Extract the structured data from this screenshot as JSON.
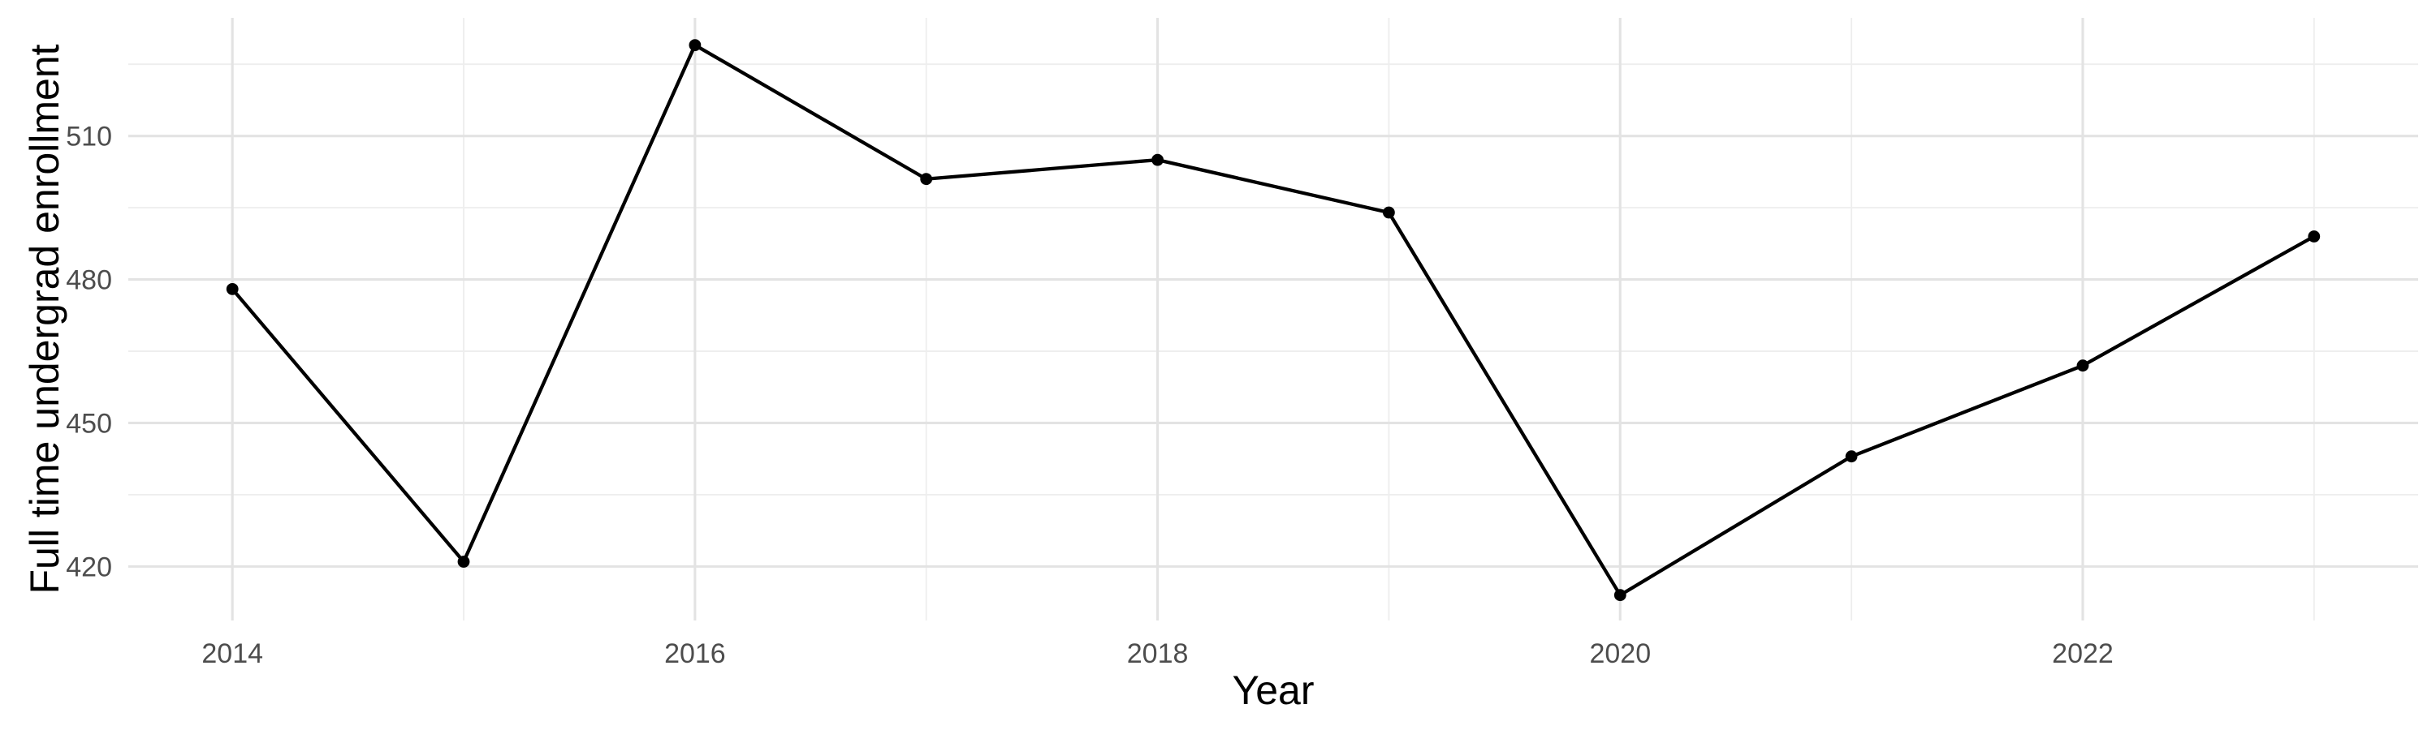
{
  "chart_data": {
    "type": "line",
    "title": "",
    "xlabel": "Year",
    "ylabel": "Full time undergrad enrollment",
    "series": [
      {
        "name": "Full time undergrad enrollment",
        "x": [
          2014,
          2015,
          2016,
          2017,
          2018,
          2019,
          2020,
          2021,
          2022,
          2023
        ],
        "values": [
          478,
          421,
          529,
          501,
          505,
          494,
          414,
          443,
          462,
          489
        ]
      }
    ],
    "x_major_ticks": [
      2014,
      2016,
      2018,
      2020,
      2022
    ],
    "x_minor_ticks": [
      2015,
      2017,
      2019,
      2021,
      2023
    ],
    "x_tick_labels": [
      "2014",
      "2016",
      "2018",
      "2020",
      "2022"
    ],
    "y_major_ticks": [
      420,
      450,
      480,
      510
    ],
    "y_minor_ticks": [
      435,
      465,
      495,
      525
    ],
    "y_tick_labels": [
      "420",
      "450",
      "480",
      "510"
    ],
    "xlim": [
      2013.55,
      2023.45
    ],
    "ylim": [
      408.7,
      534.7
    ],
    "grid": "major-and-minor",
    "legend": "none",
    "marker": "filled-circle",
    "colors": {
      "background": "#ffffff",
      "line": "#000000",
      "point": "#000000",
      "major_grid": "#e3e3e3",
      "minor_grid": "#eeeeee",
      "tick_label": "#4d4d4d",
      "axis_title": "#000000"
    }
  }
}
